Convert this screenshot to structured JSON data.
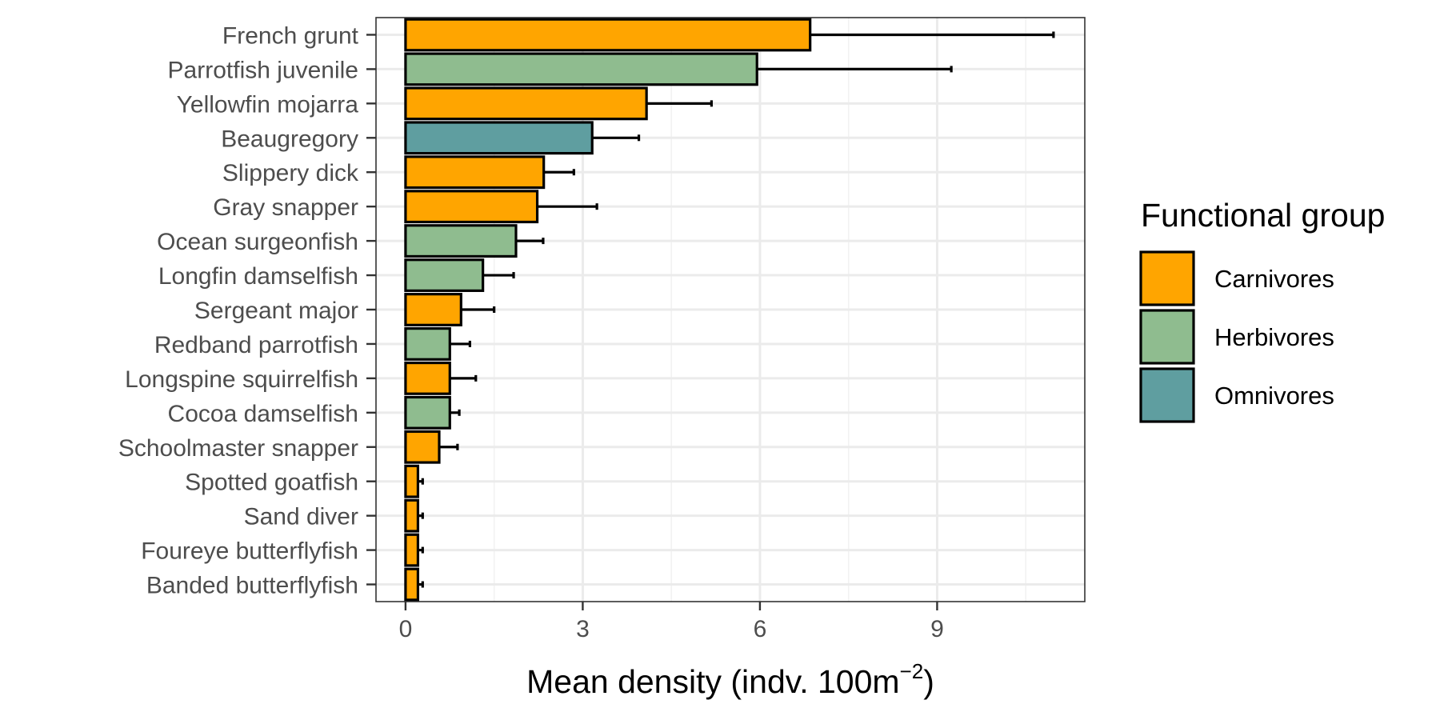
{
  "chart_data": {
    "type": "bar",
    "orientation": "horizontal",
    "categories": [
      "French grunt",
      "Parrotfish juvenile",
      "Yellowfin mojarra",
      "Beaugregory",
      "Slippery dick",
      "Gray snapper",
      "Ocean surgeonfish",
      "Longfin damselfish",
      "Sergeant major",
      "Redband parrotfish",
      "Longspine squirrelfish",
      "Cocoa damselfish",
      "Schoolmaster snapper",
      "Spotted goatfish",
      "Sand diver",
      "Foureye butterflyfish",
      "Banded butterflyfish"
    ],
    "values": [
      6.85,
      5.95,
      4.08,
      3.16,
      2.34,
      2.23,
      1.87,
      1.31,
      0.94,
      0.75,
      0.75,
      0.75,
      0.57,
      0.21,
      0.21,
      0.21,
      0.21
    ],
    "error_upper": [
      10.97,
      9.24,
      5.18,
      3.95,
      2.85,
      3.24,
      2.33,
      1.83,
      1.5,
      1.09,
      1.19,
      0.91,
      0.88,
      0.29,
      0.29,
      0.29,
      0.29
    ],
    "groups": [
      "Carnivores",
      "Herbivores",
      "Carnivores",
      "Omnivores",
      "Carnivores",
      "Carnivores",
      "Herbivores",
      "Herbivores",
      "Carnivores",
      "Herbivores",
      "Carnivores",
      "Herbivores",
      "Carnivores",
      "Carnivores",
      "Carnivores",
      "Carnivores",
      "Carnivores"
    ],
    "xlim": [
      -0.5,
      11.5
    ],
    "x_ticks": [
      0,
      3,
      6,
      9
    ],
    "x_tick_labels": [
      "0",
      "3",
      "6",
      "9"
    ],
    "xlabel": "Mean density (indv. 100m",
    "xlabel_superscript": "−2",
    "xlabel_suffix": ")",
    "ylabel": "",
    "grid": true,
    "legend": {
      "title": "Functional group",
      "position": "right",
      "items": [
        {
          "name": "Carnivores",
          "color": "#FFA500"
        },
        {
          "name": "Herbivores",
          "color": "#8FBC8F"
        },
        {
          "name": "Omnivores",
          "color": "#5F9EA0"
        }
      ]
    }
  }
}
